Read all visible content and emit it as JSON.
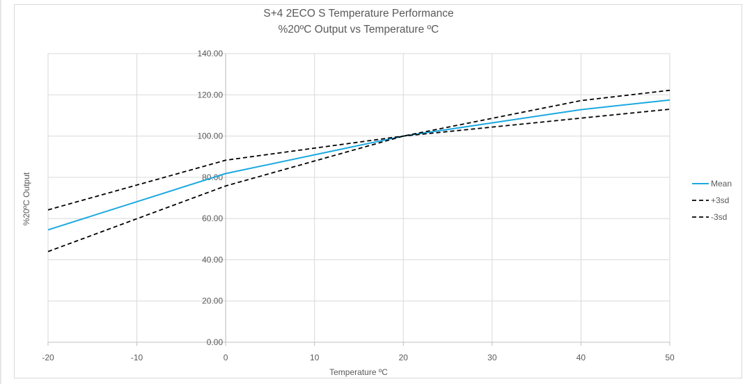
{
  "chart_data": {
    "type": "line",
    "title": "S+4 2ECO S Temperature Performance",
    "subtitle": "%20ºC Output vs Temperature ºC",
    "xlabel": "Temperature ºC",
    "ylabel": "%20ºC Output",
    "xlim": [
      -20,
      50
    ],
    "ylim": [
      0,
      140
    ],
    "x_ticks": [
      -20,
      -10,
      0,
      10,
      20,
      30,
      40,
      50
    ],
    "y_ticks": [
      "0.00",
      "20.00",
      "40.00",
      "60.00",
      "80.00",
      "100.00",
      "120.00",
      "140.00"
    ],
    "grid": true,
    "legend_position": "right",
    "series": [
      {
        "name": "Mean",
        "color": "#1ba8e0",
        "style": "solid",
        "x": [
          -20,
          0,
          20,
          40,
          50
        ],
        "y": [
          54.5,
          81.8,
          100.0,
          112.8,
          117.5
        ]
      },
      {
        "name": "+3sd",
        "color": "#000000",
        "style": "dashed",
        "x": [
          -20,
          0,
          20,
          40,
          50
        ],
        "y": [
          64.2,
          88.3,
          100.0,
          108.7,
          113.0
        ]
      },
      {
        "name": "-3sd",
        "color": "#000000",
        "style": "dashed",
        "x": [
          -20,
          0,
          20,
          40,
          50
        ],
        "y": [
          44.0,
          75.8,
          100.0,
          117.2,
          122.2
        ]
      }
    ]
  }
}
